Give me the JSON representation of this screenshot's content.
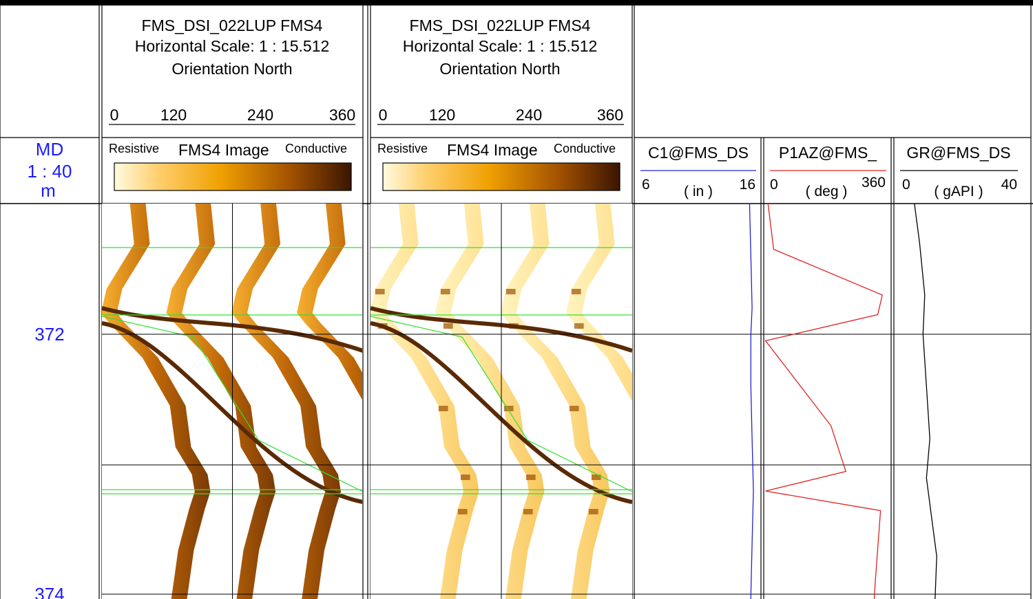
{
  "depth_track": {
    "header_title": "MD",
    "scale": "1 : 40",
    "unit": "m",
    "depth_labels": [
      "372",
      "374"
    ],
    "text_color": "#1a1aff"
  },
  "image_tracks": [
    {
      "title": "FMS_DSI_022LUP FMS4",
      "scale_text": "Horizontal Scale: 1 : 15.512",
      "orientation": "Orientation North",
      "azimuth_ticks": [
        "0",
        "120",
        "240",
        "360"
      ],
      "legend_left": "Resistive",
      "legend_center": "FMS4  Image",
      "legend_right": "Conductive",
      "palette": "static"
    },
    {
      "title": "FMS_DSI_022LUP FMS4",
      "scale_text": "Horizontal Scale: 1 : 15.512",
      "orientation": "Orientation North",
      "azimuth_ticks": [
        "0",
        "120",
        "240",
        "360"
      ],
      "legend_left": "Resistive",
      "legend_center": "FMS4  Image",
      "legend_right": "Conductive",
      "palette": "dynamic"
    }
  ],
  "colors": {
    "resistive": "#fffbe0",
    "mid": "#f0a000",
    "conductive": "#3a1500",
    "dip_pick": "#30e030",
    "caliper": "#2222cc",
    "azimuth": "#e02020",
    "gamma": "#000000"
  },
  "chart_data": [
    {
      "type": "line",
      "name": "C1@FMS_DS",
      "unit": "( in )",
      "xlim": [
        6,
        16
      ],
      "scale_left": "6",
      "scale_right": "16",
      "depth": [
        371.0,
        371.4,
        371.8,
        372.0,
        372.4,
        372.8,
        373.2,
        373.6,
        374.0,
        374.04
      ],
      "values": [
        15.1,
        15.2,
        15.3,
        15.2,
        15.2,
        15.3,
        15.4,
        15.3,
        15.2,
        15.2
      ]
    },
    {
      "type": "line",
      "name": "P1AZ@FMS_",
      "unit": "( deg )",
      "xlim": [
        0,
        360
      ],
      "scale_left": "0",
      "scale_right": "360",
      "depth": [
        371.0,
        371.35,
        371.7,
        371.85,
        372.05,
        372.7,
        373.05,
        373.2,
        373.35,
        373.9,
        374.04
      ],
      "values": [
        12,
        28,
        335,
        322,
        5,
        190,
        232,
        5,
        330,
        315,
        312
      ]
    },
    {
      "type": "line",
      "name": "GR@FMS_DS",
      "unit": "( gAPI )",
      "xlim": [
        0,
        40
      ],
      "scale_left": "0",
      "scale_right": "40",
      "depth": [
        371.0,
        371.3,
        371.7,
        372.0,
        372.4,
        372.8,
        373.1,
        373.4,
        373.7,
        374.04
      ],
      "values": [
        6,
        7.5,
        9,
        8.5,
        9.5,
        10.5,
        9.5,
        11,
        12.5,
        12
      ]
    }
  ]
}
